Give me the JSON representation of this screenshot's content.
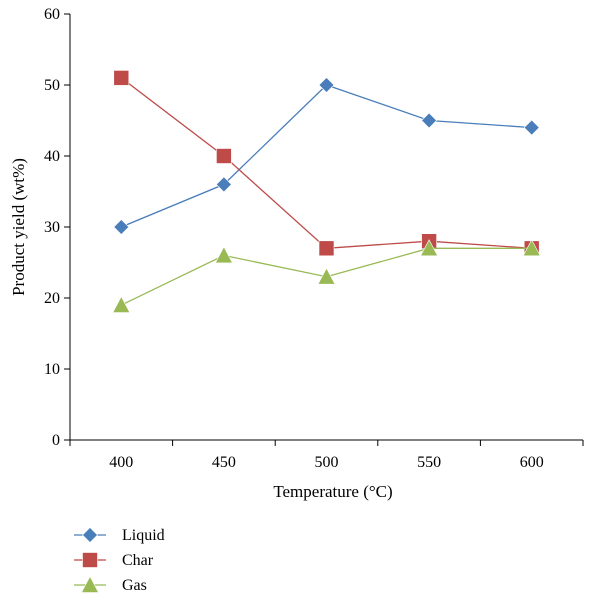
{
  "chart_data": {
    "type": "line",
    "title": "",
    "xlabel": "Temperature (°C)",
    "ylabel": "Product yield (wt%)",
    "categories": [
      "400",
      "450",
      "500",
      "550",
      "600"
    ],
    "ylim": [
      0,
      60
    ],
    "yticks": [
      "0",
      "10",
      "20",
      "30",
      "40",
      "50",
      "60"
    ],
    "grid": false,
    "legend_position": "bottom-left",
    "series": [
      {
        "name": "Liquid",
        "marker": "diamond",
        "color": "#4a7ebb",
        "values": [
          30,
          36,
          50,
          45,
          44
        ]
      },
      {
        "name": "Char",
        "marker": "square",
        "color": "#be4b48",
        "values": [
          51,
          40,
          27,
          28,
          27
        ]
      },
      {
        "name": "Gas",
        "marker": "triangle",
        "color": "#98b954",
        "values": [
          19,
          26,
          23,
          27,
          27
        ]
      }
    ]
  }
}
